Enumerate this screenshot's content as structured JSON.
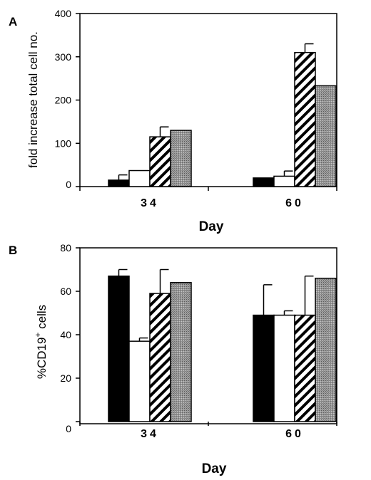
{
  "chart_data": [
    {
      "panel": "A",
      "type": "bar",
      "categories": [
        "34",
        "60"
      ],
      "series": [
        {
          "values": [
            15,
            20
          ],
          "errors": [
            12,
            0
          ],
          "fill": "black"
        },
        {
          "values": [
            37,
            24
          ],
          "errors": [
            0,
            12
          ],
          "fill": "white"
        },
        {
          "values": [
            115,
            310
          ],
          "errors": [
            23,
            20
          ],
          "fill": "hatch"
        },
        {
          "values": [
            130,
            233
          ],
          "errors": [
            0,
            0
          ],
          "fill": "stipple"
        }
      ],
      "xlabel": "Day",
      "ylabel": "fold increase total cell no.",
      "yticks": [
        "0",
        "100",
        "200",
        "300",
        "400"
      ],
      "ylim": [
        0,
        400
      ],
      "grid": false
    },
    {
      "panel": "B",
      "type": "bar",
      "categories": [
        "34",
        "60"
      ],
      "series": [
        {
          "values": [
            67,
            49
          ],
          "errors": [
            3,
            14
          ],
          "fill": "black"
        },
        {
          "values": [
            37,
            49
          ],
          "errors": [
            1.5,
            2
          ],
          "fill": "white"
        },
        {
          "values": [
            59,
            49
          ],
          "errors": [
            11,
            18
          ],
          "fill": "hatch"
        },
        {
          "values": [
            64,
            66
          ],
          "errors": [
            0,
            0
          ],
          "fill": "stipple"
        }
      ],
      "xlabel": "Day",
      "ylabel": "%CD19+ cells",
      "ylabel_main": "%CD19",
      "ylabel_sup": "+",
      "ylabel_tail": " cells",
      "yticks": [
        "0",
        "20",
        "40",
        "60",
        "80"
      ],
      "ylim": [
        0,
        80
      ],
      "grid": false
    }
  ]
}
